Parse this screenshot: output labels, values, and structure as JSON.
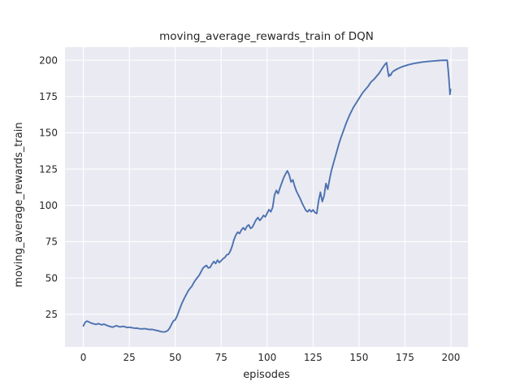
{
  "figure": {
    "title": "moving_average_rewards_train of DQN",
    "xlabel": "episodes",
    "ylabel": "moving_average_rewards_train"
  },
  "chart_data": {
    "type": "line",
    "title": "moving_average_rewards_train of DQN",
    "xlabel": "episodes",
    "ylabel": "moving_average_rewards_train",
    "x_ticks": [
      0,
      25,
      50,
      75,
      100,
      125,
      150,
      175,
      200
    ],
    "y_ticks": [
      25,
      50,
      75,
      100,
      125,
      150,
      175,
      200
    ],
    "xlim": [
      -10,
      209.3
    ],
    "ylim": [
      2.5,
      209
    ],
    "grid": true,
    "legend_position": "none",
    "style": {
      "axes_bg": "#EAEAF2",
      "fig_bg": "#FFFFFF",
      "grid_color": "#FFFFFF",
      "line_color": "#4C72B0",
      "text_color": "#262626"
    },
    "series": [
      {
        "name": "moving_average_rewards_train",
        "points": [
          [
            0,
            17.0
          ],
          [
            1,
            19.5
          ],
          [
            2,
            20.3
          ],
          [
            3,
            19.7
          ],
          [
            4,
            19.1
          ],
          [
            5,
            18.6
          ],
          [
            6,
            18.3
          ],
          [
            7,
            18.0
          ],
          [
            8,
            18.6
          ],
          [
            9,
            18.2
          ],
          [
            10,
            17.7
          ],
          [
            11,
            18.2
          ],
          [
            12,
            17.8
          ],
          [
            13,
            17.2
          ],
          [
            14,
            16.8
          ],
          [
            15,
            16.4
          ],
          [
            16,
            16.1
          ],
          [
            17,
            16.7
          ],
          [
            18,
            17.1
          ],
          [
            19,
            16.6
          ],
          [
            20,
            16.3
          ],
          [
            21,
            16.5
          ],
          [
            22,
            16.7
          ],
          [
            23,
            16.2
          ],
          [
            24,
            15.9
          ],
          [
            25,
            16.1
          ],
          [
            26,
            15.8
          ],
          [
            27,
            15.6
          ],
          [
            28,
            15.4
          ],
          [
            29,
            15.5
          ],
          [
            30,
            15.2
          ],
          [
            31,
            15.0
          ],
          [
            32,
            14.9
          ],
          [
            33,
            15.1
          ],
          [
            34,
            15.0
          ],
          [
            35,
            14.7
          ],
          [
            36,
            14.5
          ],
          [
            37,
            14.6
          ],
          [
            38,
            14.4
          ],
          [
            39,
            14.1
          ],
          [
            40,
            13.8
          ],
          [
            41,
            13.5
          ],
          [
            42,
            13.1
          ],
          [
            43,
            12.9
          ],
          [
            44,
            12.8
          ],
          [
            45,
            13.1
          ],
          [
            46,
            13.9
          ],
          [
            47,
            15.6
          ],
          [
            48,
            18.2
          ],
          [
            49,
            20.4
          ],
          [
            50,
            21.2
          ],
          [
            51,
            23.8
          ],
          [
            52,
            27.2
          ],
          [
            53,
            30.6
          ],
          [
            54,
            33.6
          ],
          [
            55,
            36.2
          ],
          [
            56,
            38.6
          ],
          [
            57,
            41.0
          ],
          [
            58,
            42.8
          ],
          [
            59,
            44.2
          ],
          [
            60,
            46.6
          ],
          [
            61,
            48.6
          ],
          [
            62,
            50.2
          ],
          [
            63,
            51.8
          ],
          [
            64,
            54.2
          ],
          [
            65,
            56.6
          ],
          [
            66,
            57.9
          ],
          [
            67,
            58.6
          ],
          [
            68,
            56.9
          ],
          [
            69,
            57.3
          ],
          [
            70,
            59.6
          ],
          [
            71,
            61.4
          ],
          [
            72,
            59.9
          ],
          [
            73,
            62.3
          ],
          [
            74,
            60.6
          ],
          [
            75,
            61.9
          ],
          [
            76,
            63.3
          ],
          [
            77,
            64.1
          ],
          [
            78,
            65.9
          ],
          [
            79,
            66.4
          ],
          [
            80,
            68.6
          ],
          [
            81,
            72.1
          ],
          [
            82,
            76.6
          ],
          [
            83,
            79.6
          ],
          [
            84,
            81.6
          ],
          [
            85,
            80.6
          ],
          [
            86,
            83.1
          ],
          [
            87,
            84.6
          ],
          [
            88,
            83.1
          ],
          [
            89,
            85.6
          ],
          [
            90,
            86.6
          ],
          [
            91,
            84.1
          ],
          [
            92,
            85.1
          ],
          [
            93,
            87.6
          ],
          [
            94,
            90.1
          ],
          [
            95,
            91.6
          ],
          [
            96,
            89.6
          ],
          [
            97,
            91.1
          ],
          [
            98,
            93.1
          ],
          [
            99,
            92.1
          ],
          [
            100,
            94.6
          ],
          [
            101,
            97.1
          ],
          [
            102,
            95.6
          ],
          [
            103,
            98.6
          ],
          [
            104,
            107.1
          ],
          [
            105,
            110.3
          ],
          [
            106,
            108.1
          ],
          [
            107,
            112.1
          ],
          [
            108,
            115.6
          ],
          [
            109,
            119.1
          ],
          [
            110,
            121.6
          ],
          [
            111,
            123.8
          ],
          [
            112,
            121.1
          ],
          [
            113,
            116.1
          ],
          [
            114,
            117.6
          ],
          [
            115,
            113.1
          ],
          [
            116,
            109.6
          ],
          [
            117,
            107.1
          ],
          [
            118,
            104.6
          ],
          [
            119,
            101.6
          ],
          [
            120,
            99.1
          ],
          [
            121,
            96.6
          ],
          [
            122,
            95.6
          ],
          [
            123,
            97.1
          ],
          [
            124,
            95.6
          ],
          [
            125,
            96.9
          ],
          [
            126,
            95.1
          ],
          [
            127,
            94.4
          ],
          [
            128,
            103.1
          ],
          [
            129,
            109.1
          ],
          [
            130,
            102.6
          ],
          [
            131,
            106.6
          ],
          [
            132,
            115.1
          ],
          [
            133,
            111.1
          ],
          [
            134,
            118.1
          ],
          [
            135,
            124.1
          ],
          [
            136,
            128.6
          ],
          [
            137,
            133.1
          ],
          [
            138,
            137.6
          ],
          [
            139,
            142.1
          ],
          [
            140,
            146.1
          ],
          [
            141,
            149.6
          ],
          [
            142,
            153.1
          ],
          [
            143,
            156.6
          ],
          [
            144,
            159.6
          ],
          [
            145,
            162.6
          ],
          [
            146,
            165.1
          ],
          [
            147,
            167.6
          ],
          [
            148,
            169.6
          ],
          [
            149,
            171.6
          ],
          [
            150,
            173.6
          ],
          [
            151,
            175.6
          ],
          [
            152,
            177.6
          ],
          [
            153,
            179.1
          ],
          [
            154,
            180.6
          ],
          [
            155,
            182.1
          ],
          [
            156,
            184.1
          ],
          [
            157,
            185.6
          ],
          [
            158,
            186.6
          ],
          [
            159,
            188.1
          ],
          [
            160,
            189.6
          ],
          [
            161,
            191.1
          ],
          [
            162,
            193.1
          ],
          [
            163,
            195.1
          ],
          [
            164,
            196.9
          ],
          [
            165,
            198.3
          ],
          [
            165.6,
            193.1
          ],
          [
            166.2,
            188.8
          ],
          [
            166.7,
            190.1
          ],
          [
            167.2,
            189.6
          ],
          [
            168,
            191.6
          ],
          [
            169,
            192.7
          ],
          [
            170,
            193.4
          ],
          [
            171,
            194.1
          ],
          [
            172,
            194.7
          ],
          [
            173,
            195.2
          ],
          [
            174,
            195.7
          ],
          [
            175,
            196.1
          ],
          [
            176,
            196.5
          ],
          [
            177,
            196.9
          ],
          [
            178,
            197.2
          ],
          [
            179,
            197.5
          ],
          [
            180,
            197.8
          ],
          [
            181,
            198.0
          ],
          [
            182,
            198.2
          ],
          [
            183,
            198.4
          ],
          [
            184,
            198.6
          ],
          [
            185,
            198.8
          ],
          [
            186,
            198.9
          ],
          [
            187,
            199.1
          ],
          [
            188,
            199.2
          ],
          [
            189,
            199.3
          ],
          [
            190,
            199.4
          ],
          [
            191,
            199.5
          ],
          [
            192,
            199.6
          ],
          [
            193,
            199.7
          ],
          [
            194,
            199.8
          ],
          [
            195,
            199.85
          ],
          [
            196,
            199.9
          ],
          [
            197,
            199.95
          ],
          [
            198,
            200.0
          ],
          [
            198.6,
            192.1
          ],
          [
            199.1,
            184.1
          ],
          [
            199.5,
            176.4
          ],
          [
            199.8,
            179.9
          ]
        ]
      }
    ]
  }
}
